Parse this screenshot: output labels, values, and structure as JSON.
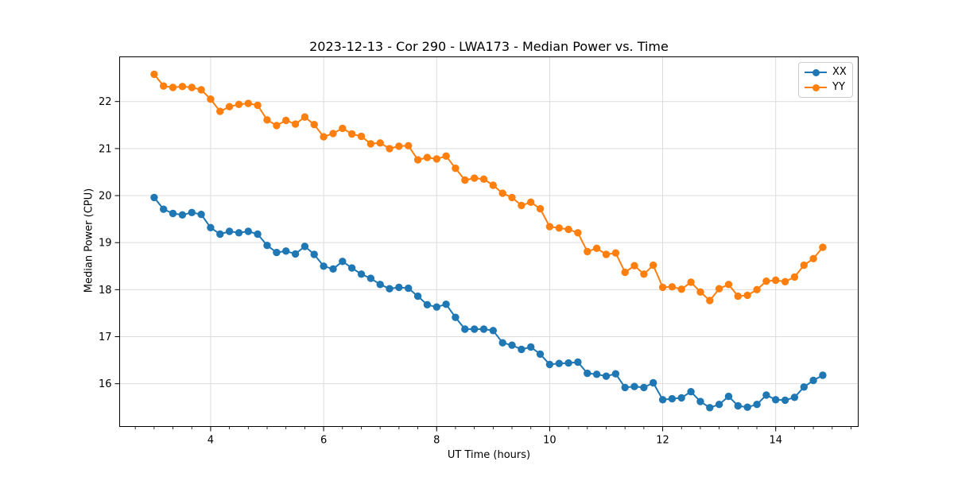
{
  "chart_data": {
    "type": "line",
    "title": "2023-12-13 - Cor 290 - LWA173 - Median Power vs. Time",
    "xlabel": "UT Time (hours)",
    "ylabel": "Median Power (CPU)",
    "xlim": [
      2.39,
      15.46
    ],
    "ylim": [
      15.09,
      22.95
    ],
    "xticks": [
      4,
      6,
      8,
      10,
      12,
      14
    ],
    "yticks": [
      16,
      17,
      18,
      19,
      20,
      21,
      22
    ],
    "x_minor_step": 0.33333,
    "grid": true,
    "grid_color": "#dcdcdc",
    "legend_position": "upper right",
    "x": [
      3.0,
      3.167,
      3.333,
      3.5,
      3.667,
      3.833,
      4.0,
      4.167,
      4.333,
      4.5,
      4.667,
      4.833,
      5.0,
      5.167,
      5.333,
      5.5,
      5.667,
      5.833,
      6.0,
      6.167,
      6.333,
      6.5,
      6.667,
      6.833,
      7.0,
      7.167,
      7.333,
      7.5,
      7.667,
      7.833,
      8.0,
      8.167,
      8.333,
      8.5,
      8.667,
      8.833,
      9.0,
      9.167,
      9.333,
      9.5,
      9.667,
      9.833,
      10.0,
      10.167,
      10.333,
      10.5,
      10.667,
      10.833,
      11.0,
      11.167,
      11.333,
      11.5,
      11.667,
      11.833,
      12.0,
      12.167,
      12.333,
      12.5,
      12.667,
      12.833,
      13.0,
      13.167,
      13.333,
      13.5,
      13.667,
      13.833,
      14.0,
      14.167,
      14.333,
      14.5,
      14.667,
      14.833
    ],
    "series": [
      {
        "name": "XX",
        "color": "#1f77b4",
        "values": [
          19.96,
          19.71,
          19.62,
          19.59,
          19.64,
          19.6,
          19.32,
          19.18,
          19.24,
          19.21,
          19.24,
          19.18,
          18.94,
          18.79,
          18.82,
          18.76,
          18.92,
          18.75,
          18.5,
          18.44,
          18.6,
          18.46,
          18.33,
          18.24,
          18.11,
          18.02,
          18.05,
          18.03,
          17.86,
          17.68,
          17.63,
          17.69,
          17.41,
          17.16,
          17.16,
          17.16,
          17.13,
          16.87,
          16.82,
          16.73,
          16.78,
          16.63,
          16.41,
          16.43,
          16.44,
          16.46,
          16.22,
          16.2,
          16.16,
          16.21,
          15.92,
          15.94,
          15.92,
          16.02,
          15.66,
          15.68,
          15.7,
          15.83,
          15.62,
          15.49,
          15.56,
          15.73,
          15.53,
          15.5,
          15.56,
          15.76,
          15.66,
          15.65,
          15.71,
          15.93,
          16.07,
          16.18
        ]
      },
      {
        "name": "YY",
        "color": "#ff7f0e",
        "values": [
          22.58,
          22.33,
          22.3,
          22.32,
          22.3,
          22.25,
          22.05,
          21.79,
          21.89,
          21.94,
          21.96,
          21.92,
          21.61,
          21.49,
          21.6,
          21.52,
          21.67,
          21.51,
          21.25,
          21.32,
          21.43,
          21.31,
          21.26,
          21.1,
          21.12,
          21.0,
          21.05,
          21.06,
          20.76,
          20.81,
          20.78,
          20.84,
          20.58,
          20.33,
          20.37,
          20.35,
          20.22,
          20.05,
          19.96,
          19.79,
          19.86,
          19.72,
          19.34,
          19.31,
          19.28,
          19.21,
          18.81,
          18.88,
          18.75,
          18.78,
          18.37,
          18.51,
          18.33,
          18.52,
          18.05,
          18.06,
          18.01,
          18.16,
          17.95,
          17.77,
          18.02,
          18.11,
          17.86,
          17.88,
          18.0,
          18.18,
          18.2,
          18.17,
          18.27,
          18.52,
          18.66,
          18.9
        ]
      }
    ]
  }
}
